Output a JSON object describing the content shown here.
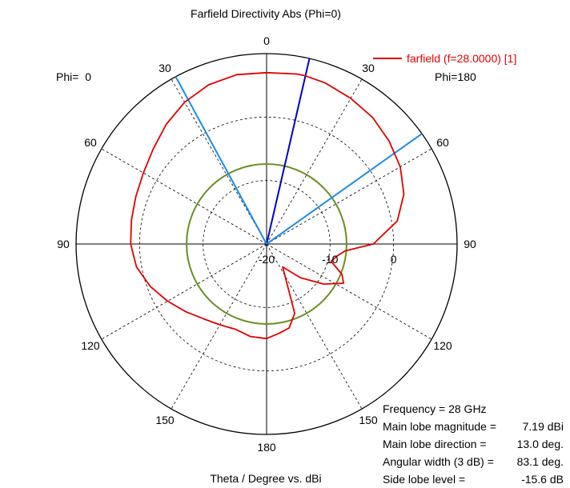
{
  "chart_data": {
    "type": "polar-line",
    "title": "Farfield Directivity Abs (Phi=0)",
    "xlabel": "Theta / Degree vs. dBi",
    "left_label": "Phi=  0",
    "right_label": "Phi=180",
    "angle_labels_left": [
      "0",
      "30",
      "60",
      "90",
      "120",
      "150",
      "180"
    ],
    "angle_labels_right": [
      "30",
      "60",
      "90",
      "120",
      "150"
    ],
    "radial_labels": [
      "-20",
      "-10",
      "0"
    ],
    "r_range_db": [
      -20,
      10
    ],
    "r_ticks_db": [
      -20,
      -10,
      0
    ],
    "legend": {
      "position": "top-right",
      "entries": [
        {
          "label": "farfield (f=28.0000) [1]",
          "color": "#e00000"
        }
      ]
    },
    "series": [
      {
        "name": "farfield (f=28.0000) [1]",
        "color": "#e00000",
        "points": [
          {
            "angle": -180,
            "db": -5.1
          },
          {
            "angle": -170,
            "db": -5.2
          },
          {
            "angle": -160,
            "db": -5.7
          },
          {
            "angle": -150,
            "db": -5.3
          },
          {
            "angle": -140,
            "db": -4.6
          },
          {
            "angle": -130,
            "db": -3.4
          },
          {
            "angle": -120,
            "db": -2.0
          },
          {
            "angle": -110,
            "db": -0.5
          },
          {
            "angle": -100,
            "db": 0.8
          },
          {
            "angle": -90,
            "db": 1.4
          },
          {
            "angle": -80,
            "db": 1.6
          },
          {
            "angle": -70,
            "db": 1.9
          },
          {
            "angle": -60,
            "db": 2.4
          },
          {
            "angle": -50,
            "db": 3.3
          },
          {
            "angle": -40,
            "db": 4.6
          },
          {
            "angle": -30,
            "db": 5.8
          },
          {
            "angle": -20,
            "db": 6.7
          },
          {
            "angle": -10,
            "db": 7.1
          },
          {
            "angle": 0,
            "db": 7.0
          },
          {
            "angle": 10,
            "db": 7.2
          },
          {
            "angle": 13,
            "db": 7.19
          },
          {
            "angle": 20,
            "db": 7.0
          },
          {
            "angle": 30,
            "db": 6.5
          },
          {
            "angle": 40,
            "db": 6.0
          },
          {
            "angle": 50,
            "db": 5.2
          },
          {
            "angle": 60,
            "db": 4.3
          },
          {
            "angle": 70,
            "db": 3.0
          },
          {
            "angle": 80,
            "db": 0.9
          },
          {
            "angle": 90,
            "db": -3.2
          },
          {
            "angle": 95,
            "db": -7.6
          },
          {
            "angle": 100,
            "db": -8.8
          },
          {
            "angle": 105,
            "db": -9.5
          },
          {
            "angle": 112,
            "db": -7.2
          },
          {
            "angle": 117,
            "db": -6.4
          },
          {
            "angle": 125,
            "db": -9.0
          },
          {
            "angle": 135,
            "db": -12.5
          },
          {
            "angle": 145,
            "db": -15.6
          },
          {
            "angle": 150,
            "db": -14.2
          },
          {
            "angle": 158,
            "db": -8.2
          },
          {
            "angle": 165,
            "db": -6.3
          },
          {
            "angle": 172,
            "db": -5.8
          },
          {
            "angle": 180,
            "db": -5.1
          }
        ]
      }
    ],
    "reference_circle": {
      "db": -7.4,
      "color": "#6b8e23"
    },
    "markers": [
      {
        "angle": 13,
        "color": "#0000c8"
      },
      {
        "angle": -28.5,
        "color": "#1a8ce6"
      },
      {
        "angle": 54.6,
        "color": "#1a8ce6"
      }
    ],
    "grid": true
  },
  "stats": {
    "frequency": "Frequency = 28 GHz",
    "main_lobe_magnitude_label": "Main lobe magnitude =",
    "main_lobe_magnitude_value": "7.19 dBi",
    "main_lobe_direction_label": "Main lobe direction =",
    "main_lobe_direction_value": "13.0 deg.",
    "angular_width_label": "Angular width (3 dB) =",
    "angular_width_value": "83.1 deg.",
    "side_lobe_level_label": "Side lobe level =",
    "side_lobe_level_value": "-15.6 dB"
  }
}
